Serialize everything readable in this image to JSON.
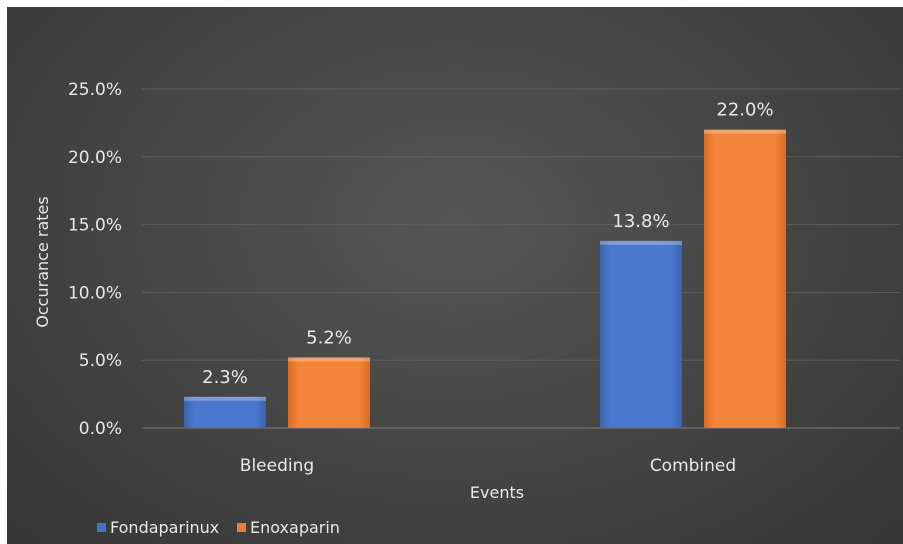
{
  "chart_data": {
    "type": "bar",
    "xlabel": "Events",
    "ylabel": "Occurance rates",
    "categories": [
      "Bleeding",
      "Combined"
    ],
    "series": [
      {
        "name": "Fondaparinux",
        "values": [
          2.3,
          13.8
        ],
        "data_labels": [
          "2.3%",
          "13.8%"
        ],
        "color": "#4472c4"
      },
      {
        "name": "Enoxaparin",
        "values": [
          5.2,
          22.0
        ],
        "data_labels": [
          "5.2%",
          "22.0%"
        ],
        "color": "#ed7d31"
      }
    ],
    "ylim": [
      0,
      25
    ],
    "yticks": [
      0,
      5,
      10,
      15,
      20,
      25
    ],
    "ytick_labels": [
      "0.0%",
      "5.0%",
      "10.0%",
      "15.0%",
      "20.0%",
      "25.0%"
    ],
    "grid": true,
    "legend_position": "bottom-left",
    "background": "#474747"
  }
}
